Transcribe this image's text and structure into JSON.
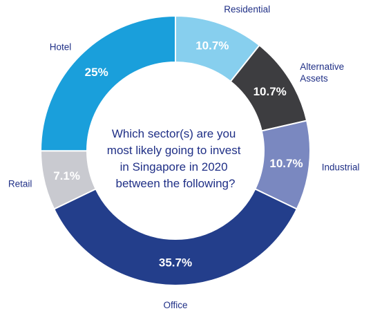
{
  "chart_data": {
    "type": "pie",
    "variant": "donut",
    "center_text": [
      "Which sector(s) are you",
      "most likely going to invest",
      "in Singapore in 2020",
      "between the following?"
    ],
    "slices": [
      {
        "category": "Residential",
        "category_lines": [
          "Residential"
        ],
        "value": 10.7,
        "label": "10.7%",
        "color": "#87cfee",
        "label_color": "#ffffff"
      },
      {
        "category": "Alternative Assets",
        "category_lines": [
          "Alternative",
          "Assets"
        ],
        "value": 10.7,
        "label": "10.7%",
        "color": "#3d3d40",
        "label_color": "#ffffff"
      },
      {
        "category": "Industrial",
        "category_lines": [
          "Industrial"
        ],
        "value": 10.7,
        "label": "10.7%",
        "color": "#7a88c0",
        "label_color": "#ffffff"
      },
      {
        "category": "Office",
        "category_lines": [
          "Office"
        ],
        "value": 35.7,
        "label": "35.7%",
        "color": "#233e8b",
        "label_color": "#ffffff"
      },
      {
        "category": "Retail",
        "category_lines": [
          "Retail"
        ],
        "value": 7.1,
        "label": "7.1%",
        "color": "#c9cad0",
        "label_color": "#ffffff"
      },
      {
        "category": "Hotel",
        "category_lines": [
          "Hotel"
        ],
        "value": 25,
        "label": "25%",
        "color": "#1a9fdb",
        "label_color": "#ffffff"
      }
    ],
    "label_text_color": "#1f2f86",
    "start_angle_deg": 0,
    "direction": "clockwise"
  }
}
